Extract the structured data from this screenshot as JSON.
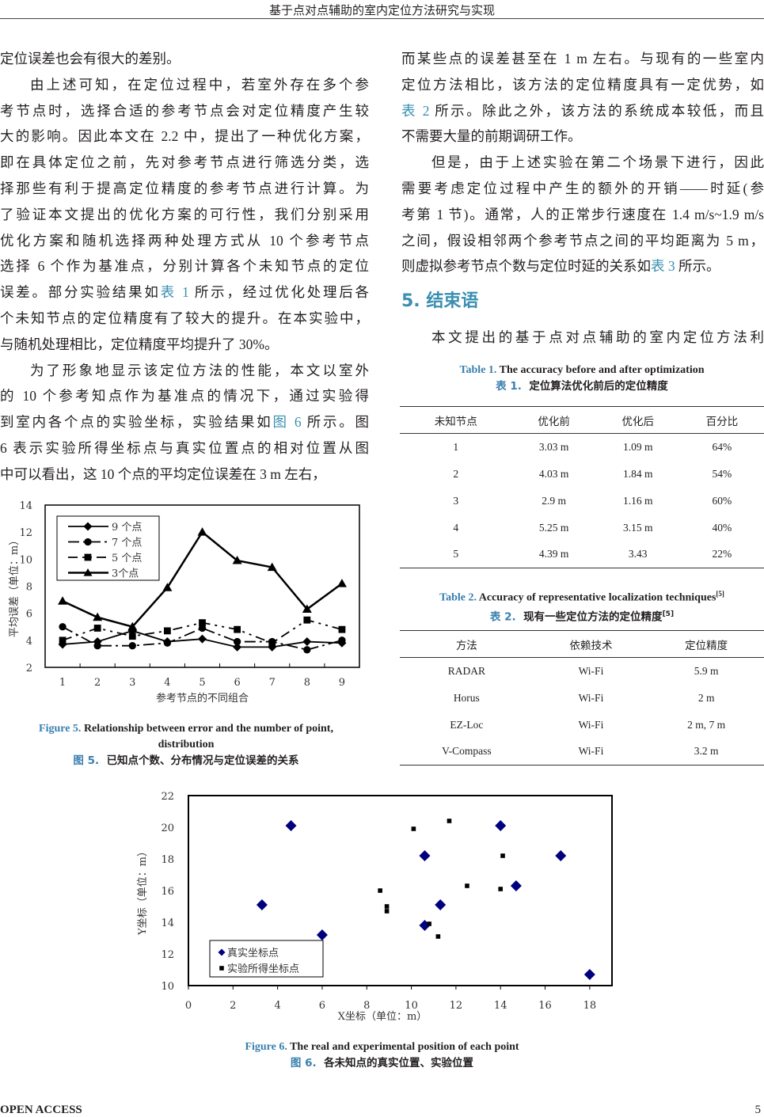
{
  "header": {
    "title": "基于点对点辅助的室内定位方法研究与实现"
  },
  "left": {
    "lines": [
      "定位误差也会有很大的差别。",
      "由上述可知，在定位过程中，若室外存在多个参",
      "考节点时，选择合适的参考节点会对定位精度产生较",
      "大的影响。因此本文在 2.2 中，提出了一种优化方案，",
      "即在具体定位之前，先对参考节点进行筛选分类，选",
      "择那些有利于提高定位精度的参考节点进行计算。为",
      "了验证本文提出的优化方案的可行性，我们分别采用",
      "优化方案和随机选择两种处理方式从 10 个参考节点",
      "选择 6 个作为基准点，分别计算各个未知节点的定位",
      "误差。部分实验结果如表 1 所示，经过优化处理后各",
      "个未知节点的定位精度有了较大的提升。在本实验中，",
      "与随机处理相比，定位精度平均提升了 30%。",
      "为了形象地显示该定位方法的性能，本文以室外",
      "的 10 个参考知点作为基准点的情况下，通过实验得",
      "到室内各个点的实验坐标，实验结果如图 6 所示。图",
      "6 表示实验所得坐标点与真实位置点的相对位置从图",
      "中可以看出，这 10 个点的平均定位误差在 3 m 左右，"
    ]
  },
  "right": {
    "lines": [
      "而某些点的误差甚至在 1 m 左右。与现有的一些室内",
      "定位方法相比，该方法的定位精度具有一定优势，如",
      "表 2 所示。除此之外，该方法的系统成本较低，而且",
      "不需要大量的前期调研工作。",
      "但是，由于上述实验在第二个场景下进行，因此",
      "需要考虑定位过程中产生的额外的开销——时延(参",
      "考第 1 节)。通常，人的正常步行速度在 1.4 m/s~1.9 m/s",
      "之间，假设相邻两个参考节点之间的平均距离为 5 m，",
      "则虚拟参考节点个数与定位时延的关系如表 3 所示。"
    ],
    "heading": "5.  结束语",
    "para2": "本文提出的基于点对点辅助的室内定位方法利"
  },
  "table1": {
    "label_en": "Table 1.",
    "title_en": "The accuracy before and after optimization",
    "label_cn": "表 1.",
    "title_cn": "定位算法优化前后的定位精度",
    "headers": [
      "未知节点",
      "优化前",
      "优化后",
      "百分比"
    ],
    "rows": [
      [
        "1",
        "3.03 m",
        "1.09 m",
        "64%"
      ],
      [
        "2",
        "4.03 m",
        "1.84 m",
        "54%"
      ],
      [
        "3",
        "2.9 m",
        "1.16 m",
        "60%"
      ],
      [
        "4",
        "5.25 m",
        "3.15 m",
        "40%"
      ],
      [
        "5",
        "4.39 m",
        "3.43",
        "22%"
      ]
    ]
  },
  "table2": {
    "label_en": "Table 2.",
    "title_en": "Accuracy of representative localization techniques",
    "ref": "[5]",
    "label_cn": "表 2.",
    "title_cn": "现有一些定位方法的定位精度",
    "headers": [
      "方法",
      "依赖技术",
      "定位精度"
    ],
    "rows": [
      [
        "RADAR",
        "Wi-Fi",
        "5.9 m"
      ],
      [
        "Horus",
        "Wi-Fi",
        "2 m"
      ],
      [
        "EZ-Loc",
        "Wi-Fi",
        "2 m, 7 m"
      ],
      [
        "V-Compass",
        "Wi-Fi",
        "3.2 m"
      ]
    ]
  },
  "fig5": {
    "label_en": "Figure 5.",
    "title_en_1": "Relationship between error and the number of point,",
    "title_en_2": "distribution",
    "label_cn": "图 5.",
    "title_cn": "已知点个数、分布情况与定位误差的关系"
  },
  "fig6": {
    "label_en": "Figure 6.",
    "title_en": "The real and experimental position of each point",
    "label_cn": "图 6.",
    "title_cn": "各未知点的真实位置、实验位置"
  },
  "chart_data": [
    {
      "type": "line",
      "xlabel": "参考节点的不同组合",
      "ylabel": "平均误差（单位：m）",
      "ylim": [
        2,
        14
      ],
      "yticks": [
        "2",
        "4",
        "6",
        "8",
        "10",
        "12",
        "14"
      ],
      "categories": [
        "1",
        "2",
        "3",
        "4",
        "5",
        "6",
        "7",
        "8",
        "9"
      ],
      "legend": "top-left",
      "series": [
        {
          "name": "9 个点",
          "marker": "diamond",
          "values": [
            3.7,
            3.9,
            4.7,
            3.9,
            4.1,
            3.5,
            3.5,
            3.9,
            3.8
          ]
        },
        {
          "name": "7 个点",
          "marker": "circle",
          "values": [
            5.0,
            3.6,
            3.6,
            3.8,
            4.9,
            3.9,
            3.9,
            3.3,
            4.0
          ]
        },
        {
          "name": "5 个点",
          "marker": "square",
          "values": [
            4.0,
            4.9,
            4.3,
            4.7,
            5.3,
            4.8,
            3.8,
            5.5,
            4.8
          ]
        },
        {
          "name": "3个点",
          "marker": "triangle",
          "values": [
            6.9,
            5.7,
            5.0,
            7.9,
            12.0,
            9.9,
            9.4,
            6.3,
            8.2
          ]
        }
      ]
    },
    {
      "type": "scatter",
      "xlabel": "X坐标（单位：m）",
      "ylabel": "Y坐标（单位：m）",
      "xlim": [
        0,
        19
      ],
      "ylim": [
        10,
        22
      ],
      "xticks": [
        "0",
        "2",
        "4",
        "6",
        "8",
        "10",
        "12",
        "14",
        "16",
        "18"
      ],
      "yticks": [
        "10",
        "12",
        "14",
        "16",
        "18",
        "20",
        "22"
      ],
      "legend": "bottom-left",
      "series": [
        {
          "name": "真实坐标点",
          "marker": "diamond",
          "color": "#00007f",
          "points": [
            [
              3.3,
              15.1
            ],
            [
              4.6,
              20.1
            ],
            [
              6.0,
              13.2
            ],
            [
              10.6,
              18.2
            ],
            [
              10.6,
              13.8
            ],
            [
              11.3,
              15.1
            ],
            [
              14.0,
              20.1
            ],
            [
              14.7,
              16.3
            ],
            [
              16.7,
              18.2
            ],
            [
              18.0,
              10.7
            ]
          ]
        },
        {
          "name": "实验所得坐标点",
          "marker": "square",
          "color": "#000000",
          "points": [
            [
              8.6,
              16.0
            ],
            [
              8.9,
              15.0
            ],
            [
              8.9,
              14.7
            ],
            [
              10.1,
              19.9
            ],
            [
              10.8,
              13.9
            ],
            [
              11.2,
              13.1
            ],
            [
              11.7,
              20.4
            ],
            [
              12.5,
              16.3
            ],
            [
              14.0,
              16.1
            ],
            [
              14.1,
              18.2
            ]
          ]
        }
      ]
    }
  ],
  "footer": {
    "left": "OPEN ACCESS",
    "page": "5"
  }
}
